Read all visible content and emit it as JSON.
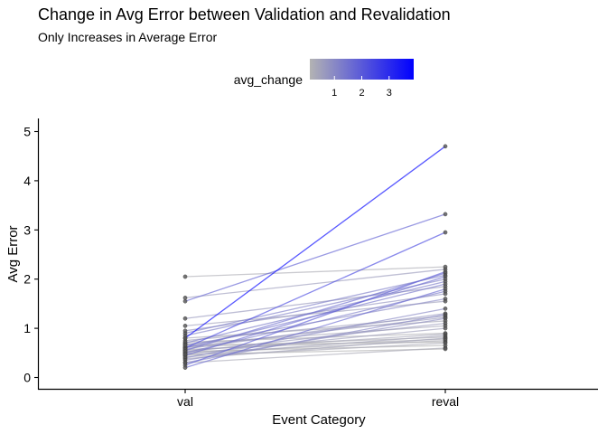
{
  "chart_data": {
    "type": "line",
    "title": "Change in Avg Error between Validation and Revalidation",
    "subtitle": "Only Increases in Average Error",
    "xlabel": "Event Category",
    "ylabel": "Avg Error",
    "categories": [
      "val",
      "reval"
    ],
    "ylim": [
      0,
      5
    ],
    "yticks": [
      0,
      1,
      2,
      3,
      4,
      5
    ],
    "grid": false,
    "legend": {
      "title": "avg_change",
      "placement": "top",
      "type": "gradient",
      "range": [
        0.1,
        3.9
      ],
      "ticks": [
        1,
        2,
        3
      ],
      "low_color": "#b3b3b3",
      "high_color": "#0000ff"
    },
    "point_color": "#555555",
    "series": [
      {
        "values": [
          0.8,
          4.7
        ]
      },
      {
        "values": [
          1.55,
          3.32
        ]
      },
      {
        "values": [
          0.6,
          2.95
        ]
      },
      {
        "values": [
          1.62,
          2.2
        ]
      },
      {
        "values": [
          2.05,
          2.25
        ]
      },
      {
        "values": [
          0.25,
          2.15
        ]
      },
      {
        "values": [
          0.55,
          2.12
        ]
      },
      {
        "values": [
          0.9,
          2.08
        ]
      },
      {
        "values": [
          0.45,
          2.05
        ]
      },
      {
        "values": [
          0.85,
          2.0
        ]
      },
      {
        "values": [
          0.7,
          1.95
        ]
      },
      {
        "values": [
          0.6,
          1.9
        ]
      },
      {
        "values": [
          1.2,
          1.85
        ]
      },
      {
        "values": [
          0.2,
          1.8
        ]
      },
      {
        "values": [
          0.5,
          1.75
        ]
      },
      {
        "values": [
          0.95,
          1.7
        ]
      },
      {
        "values": [
          0.65,
          1.6
        ]
      },
      {
        "values": [
          1.05,
          1.55
        ]
      },
      {
        "values": [
          0.4,
          1.4
        ]
      },
      {
        "values": [
          0.58,
          1.3
        ]
      },
      {
        "values": [
          0.3,
          1.28
        ]
      },
      {
        "values": [
          0.75,
          1.25
        ]
      },
      {
        "values": [
          0.62,
          1.22
        ]
      },
      {
        "values": [
          0.35,
          1.2
        ]
      },
      {
        "values": [
          0.8,
          1.15
        ]
      },
      {
        "values": [
          0.52,
          1.1
        ]
      },
      {
        "values": [
          0.68,
          1.05
        ]
      },
      {
        "values": [
          0.48,
          1.0
        ]
      },
      {
        "values": [
          0.72,
          0.9
        ]
      },
      {
        "values": [
          0.55,
          0.88
        ]
      },
      {
        "values": [
          0.45,
          0.85
        ]
      },
      {
        "values": [
          0.62,
          0.82
        ]
      },
      {
        "values": [
          0.38,
          0.8
        ]
      },
      {
        "values": [
          0.57,
          0.78
        ]
      },
      {
        "values": [
          0.5,
          0.75
        ]
      },
      {
        "values": [
          0.66,
          0.72
        ]
      },
      {
        "values": [
          0.42,
          0.7
        ]
      },
      {
        "values": [
          0.53,
          0.65
        ]
      },
      {
        "values": [
          0.3,
          0.6
        ]
      },
      {
        "values": [
          0.47,
          0.58
        ]
      }
    ]
  }
}
